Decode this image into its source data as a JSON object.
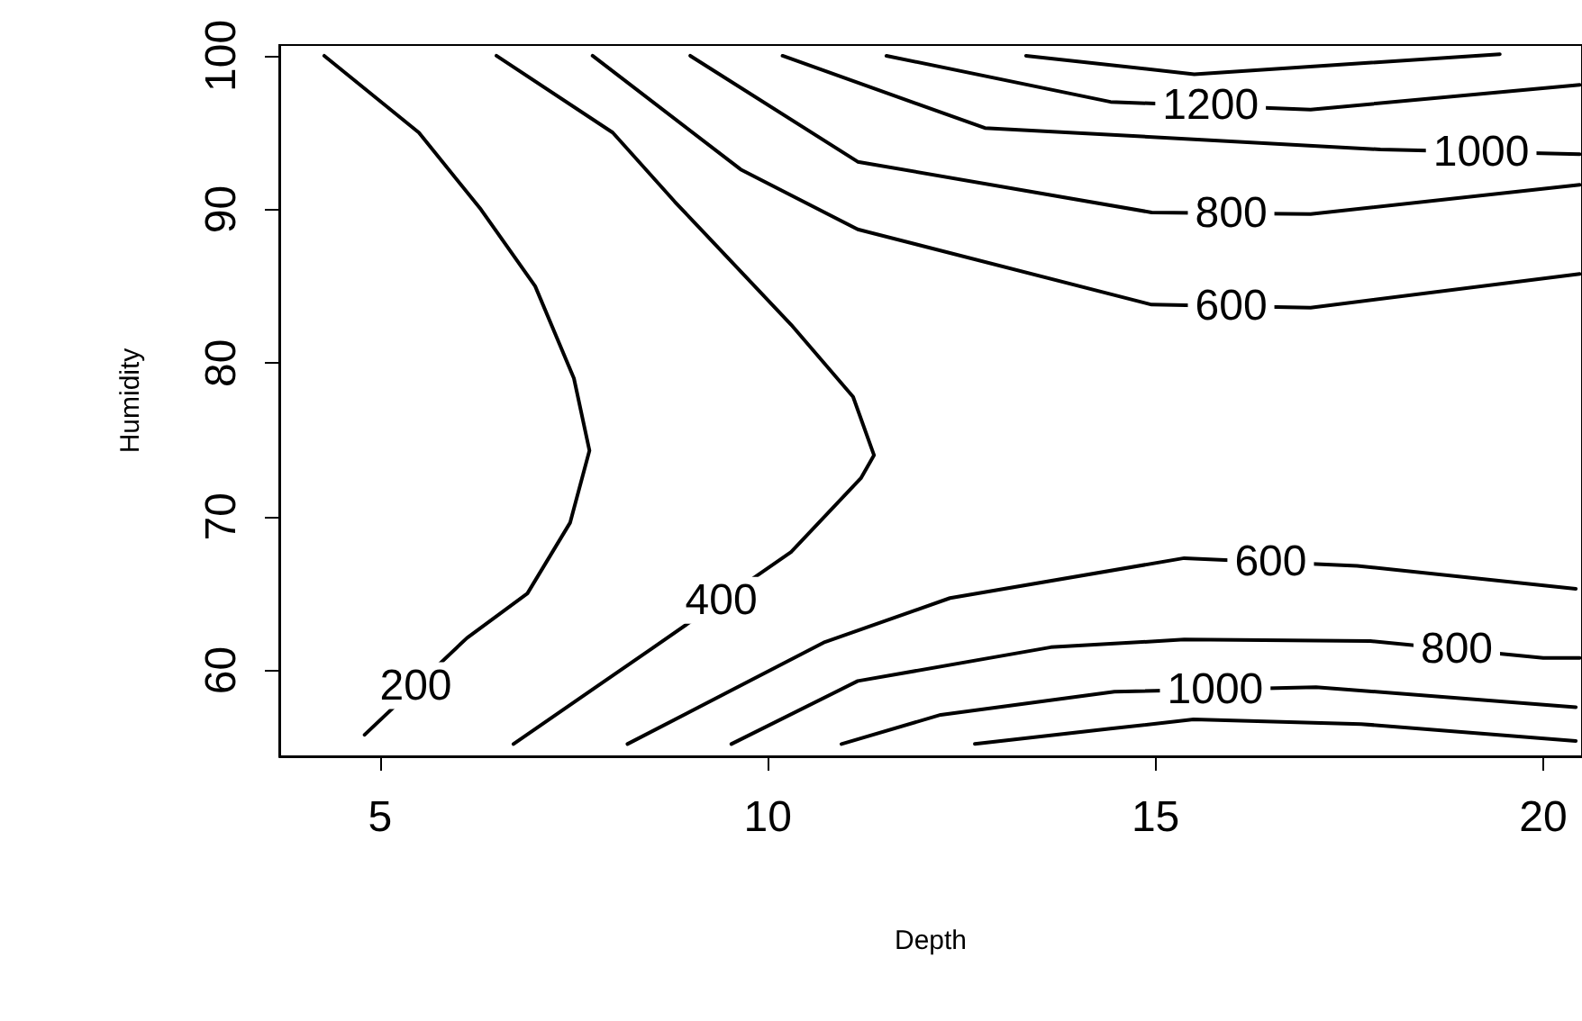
{
  "chart_data": {
    "type": "line",
    "xlabel": "Depth",
    "ylabel": "Humidity",
    "xlim": [
      3.7,
      20.5
    ],
    "xticks": [
      5,
      10,
      15,
      20
    ],
    "ylim": [
      54.4,
      100.7
    ],
    "yticks": [
      60,
      70,
      80,
      90,
      100
    ],
    "series": [
      {
        "color": "#000000",
        "x": [
          4.28,
          5.5,
          6.3,
          7.0,
          7.5,
          7.7,
          7.45,
          6.9,
          6.12,
          4.8
        ],
        "values": [
          100,
          95,
          90,
          85,
          79,
          74.3,
          69.6,
          65,
          62.1,
          55.8
        ]
      },
      {
        "color": "#000000",
        "x": [
          6.5,
          8.0,
          8.8,
          10.3,
          11.1,
          11.37,
          11.2,
          10.3,
          8.5,
          6.72
        ],
        "values": [
          100,
          95,
          90.5,
          82.5,
          77.8,
          74.0,
          72.5,
          67.7,
          61.4,
          55.2
        ]
      },
      {
        "color": "#000000",
        "x": [
          7.74,
          9.65,
          11.16,
          14.95,
          17.0,
          20.47
        ],
        "values": [
          100,
          92.6,
          88.7,
          83.8,
          83.6,
          85.8
        ]
      },
      {
        "color": "#000000",
        "x": [
          9.0,
          11.16,
          14.95,
          17.0,
          20.47
        ],
        "values": [
          100,
          93.1,
          89.8,
          89.7,
          91.6
        ]
      },
      {
        "color": "#000000",
        "x": [
          10.19,
          12.8,
          17.9,
          20.47
        ],
        "values": [
          100,
          95.3,
          93.9,
          93.6
        ]
      },
      {
        "color": "#000000",
        "x": [
          11.53,
          14.42,
          17.0,
          20.47
        ],
        "values": [
          100,
          97.0,
          96.5,
          98.1
        ]
      },
      {
        "color": "#000000",
        "x": [
          13.33,
          15.5,
          19.44
        ],
        "values": [
          100,
          98.8,
          100.1
        ]
      },
      {
        "color": "#000000",
        "x": [
          8.19,
          10.72,
          12.35,
          15.37,
          17.6,
          20.42
        ],
        "values": [
          55.2,
          61.8,
          64.7,
          67.3,
          66.8,
          65.3
        ]
      },
      {
        "color": "#000000",
        "x": [
          9.53,
          11.16,
          13.65,
          15.37,
          17.77,
          20.0,
          20.47
        ],
        "values": [
          55.2,
          59.3,
          61.5,
          62.0,
          61.9,
          60.8,
          60.8
        ]
      },
      {
        "color": "#000000",
        "x": [
          10.95,
          12.23,
          14.47,
          17.07,
          20.42
        ],
        "values": [
          55.2,
          57.1,
          58.6,
          58.9,
          57.6
        ]
      },
      {
        "color": "#000000",
        "x": [
          12.67,
          14.42,
          15.49,
          17.65,
          20.42
        ],
        "values": [
          55.2,
          56.2,
          56.8,
          56.5,
          55.4
        ]
      }
    ],
    "marker": "none",
    "annotations": [
      {
        "text": "200",
        "x": 5.46,
        "y": 59.0
      },
      {
        "text": "400",
        "x": 9.4,
        "y": 64.55
      },
      {
        "text": "600",
        "x": 15.975,
        "y": 83.7
      },
      {
        "text": "800",
        "x": 15.975,
        "y": 89.75
      },
      {
        "text": "1000",
        "x": 19.2,
        "y": 93.75
      },
      {
        "text": "1200",
        "x": 15.71,
        "y": 96.75
      },
      {
        "text": "600",
        "x": 16.485,
        "y": 67.05
      },
      {
        "text": "800",
        "x": 18.885,
        "y": 61.35
      },
      {
        "text": "1000",
        "x": 15.77,
        "y": 58.75
      }
    ]
  }
}
